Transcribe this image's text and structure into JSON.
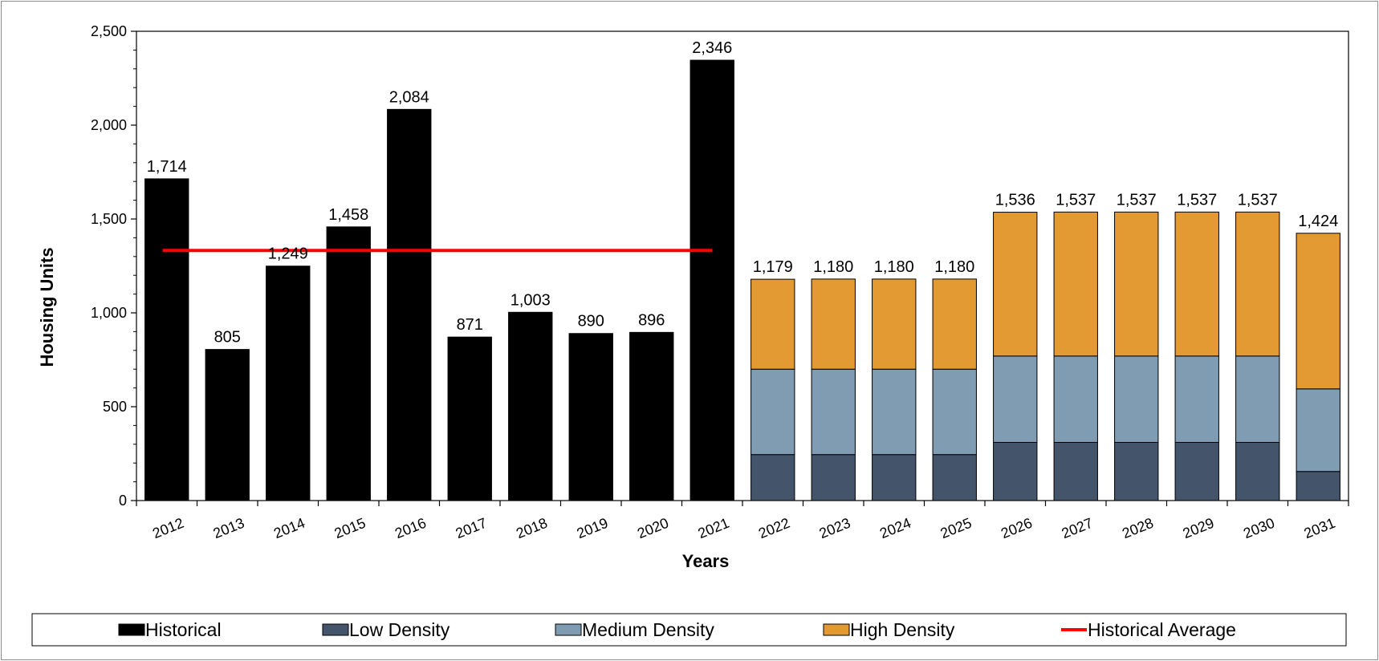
{
  "chart_data": {
    "type": "bar",
    "stacked": true,
    "xlabel": "Years",
    "ylabel": "Housing Units",
    "ylim": [
      0,
      2500
    ],
    "yticks": [
      0,
      500,
      1000,
      1500,
      2000,
      2500
    ],
    "ytick_labels": [
      "0",
      "500",
      "1,000",
      "1,500",
      "2,000",
      "2,500"
    ],
    "grid": false,
    "legend_placement": "bottom",
    "categories": [
      "2012",
      "2013",
      "2014",
      "2015",
      "2016",
      "2017",
      "2018",
      "2019",
      "2020",
      "2021",
      "2022",
      "2023",
      "2024",
      "2025",
      "2026",
      "2027",
      "2028",
      "2029",
      "2030",
      "2031"
    ],
    "series": [
      {
        "name": "Historical",
        "color": "#000000",
        "values": [
          1714,
          805,
          1249,
          1458,
          2084,
          871,
          1003,
          890,
          896,
          2346,
          null,
          null,
          null,
          null,
          null,
          null,
          null,
          null,
          null,
          null
        ]
      },
      {
        "name": "Low Density",
        "color": "#44546a",
        "values": [
          null,
          null,
          null,
          null,
          null,
          null,
          null,
          null,
          null,
          null,
          245,
          245,
          245,
          245,
          310,
          310,
          310,
          310,
          310,
          155
        ]
      },
      {
        "name": "Medium Density",
        "color": "#7f9cb3",
        "values": [
          null,
          null,
          null,
          null,
          null,
          null,
          null,
          null,
          null,
          null,
          455,
          455,
          455,
          455,
          460,
          460,
          460,
          460,
          460,
          440
        ]
      },
      {
        "name": "High Density",
        "color": "#e39a32",
        "values": [
          null,
          null,
          null,
          null,
          null,
          null,
          null,
          null,
          null,
          null,
          479,
          480,
          480,
          480,
          766,
          767,
          767,
          767,
          767,
          829
        ]
      }
    ],
    "totals": [
      "1,714",
      "805",
      "1,249",
      "1,458",
      "2,084",
      "871",
      "1,003",
      "890",
      "896",
      "2,346",
      "1,179",
      "1,180",
      "1,180",
      "1,180",
      "1,536",
      "1,537",
      "1,537",
      "1,537",
      "1,537",
      "1,424"
    ],
    "reference_line": {
      "name": "Historical Average",
      "color": "#ff0000",
      "value": 1332,
      "from": "2012",
      "to": "2021"
    },
    "legend": [
      {
        "label": "Historical",
        "kind": "box",
        "color": "#000000"
      },
      {
        "label": "Low Density",
        "kind": "box",
        "color": "#44546a"
      },
      {
        "label": "Medium Density",
        "kind": "box",
        "color": "#7f9cb3"
      },
      {
        "label": "High Density",
        "kind": "box",
        "color": "#e39a32"
      },
      {
        "label": "Historical Average",
        "kind": "line",
        "color": "#ff0000"
      }
    ]
  }
}
